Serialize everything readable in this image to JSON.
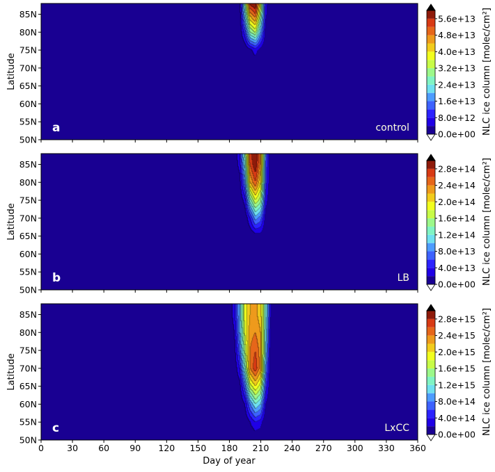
{
  "chart_data": {
    "type": "heatmap",
    "subtype": "filled-contour",
    "xlabel": "Day of year",
    "ylabel": "Latitude",
    "xlim": [
      0,
      360
    ],
    "ylim": [
      50,
      88
    ],
    "xticks": [
      0,
      30,
      60,
      90,
      120,
      150,
      180,
      210,
      240,
      270,
      300,
      330,
      360
    ],
    "xtick_labels": [
      "0",
      "30",
      "60",
      "90",
      "120",
      "150",
      "180",
      "210",
      "240",
      "270",
      "300",
      "330",
      "360"
    ],
    "yticks": [
      50,
      55,
      60,
      65,
      70,
      75,
      80,
      85
    ],
    "ytick_labels": [
      "50N",
      "55N",
      "60N",
      "65N",
      "70N",
      "75N",
      "80N",
      "85N"
    ],
    "colorbar_label": "NLC ice column  [molec/cm²]",
    "colormap": [
      "#190092",
      "#1f00e6",
      "#2b22ff",
      "#3d62ff",
      "#4d9cff",
      "#6fe0f0",
      "#80f4c4",
      "#9cf88a",
      "#c8fc48",
      "#f2ff1e",
      "#f2cc1c",
      "#ee9a1c",
      "#e6661a",
      "#d83a14",
      "#8e1a0a"
    ],
    "extend_max_color": "#000000",
    "extend_min_color": "#ffffff",
    "grid_days": [
      180,
      185,
      190,
      195,
      200,
      205,
      210,
      215,
      220,
      225,
      230
    ],
    "grid_lats": [
      50,
      55,
      60,
      65,
      70,
      75,
      80,
      85,
      88
    ],
    "panels": [
      {
        "letter": "a",
        "name": "control",
        "level_step": 4000000000000.0,
        "level_max": 60000000000000.0,
        "colorbar_ticks": [
          0,
          8000000000000.0,
          16000000000000.0,
          24000000000000.0,
          32000000000000.0,
          40000000000000.0,
          48000000000000.0,
          56000000000000.0
        ],
        "colorbar_tick_labels": [
          "0.0e+00",
          "8.0e+12",
          "1.6e+13",
          "2.4e+13",
          "3.2e+13",
          "4.0e+13",
          "4.8e+13",
          "5.6e+13"
        ],
        "values": [
          [
            0,
            0,
            0,
            0,
            0,
            0,
            0,
            0,
            0,
            0,
            0
          ],
          [
            0,
            0,
            0,
            0,
            0,
            0,
            0,
            0,
            0,
            0,
            0
          ],
          [
            0,
            0,
            0,
            0,
            0,
            0,
            0,
            0,
            0,
            0,
            0
          ],
          [
            0,
            0,
            0,
            0,
            0,
            0,
            0,
            0,
            0,
            0,
            0
          ],
          [
            0,
            0,
            0,
            0,
            0,
            0,
            0,
            0,
            0,
            0,
            0
          ],
          [
            0,
            0,
            0,
            0,
            3000000000000.0,
            6000000000000.0,
            2000000000000.0,
            0,
            0,
            0,
            0
          ],
          [
            0,
            0,
            0,
            10000000000000.0,
            28000000000000.0,
            33000000000000.0,
            18000000000000.0,
            2000000000000.0,
            0,
            0,
            0
          ],
          [
            0,
            0,
            1000000000000.0,
            22000000000000.0,
            46000000000000.0,
            52000000000000.0,
            30000000000000.0,
            5000000000000.0,
            0,
            0,
            0
          ],
          [
            0,
            0,
            2000000000000.0,
            28000000000000.0,
            58000000000000.0,
            61000000000000.0,
            35000000000000.0,
            6000000000000.0,
            0,
            0,
            0
          ]
        ]
      },
      {
        "letter": "b",
        "name": "LB",
        "level_step": 20000000000000.0,
        "level_max": 300000000000000.0,
        "colorbar_ticks": [
          0,
          40000000000000.0,
          80000000000000.0,
          120000000000000.0,
          160000000000000.0,
          200000000000000.0,
          240000000000000.0,
          280000000000000.0
        ],
        "colorbar_tick_labels": [
          "0.0e+00",
          "4.0e+13",
          "8.0e+13",
          "1.2e+14",
          "1.6e+14",
          "2.0e+14",
          "2.4e+14",
          "2.8e+14"
        ],
        "values": [
          [
            0,
            0,
            0,
            0,
            0,
            0,
            0,
            0,
            0,
            0,
            0
          ],
          [
            0,
            0,
            0,
            0,
            0,
            0,
            0,
            0,
            0,
            0,
            0
          ],
          [
            0,
            0,
            0,
            0,
            0,
            0,
            0,
            0,
            0,
            0,
            0
          ],
          [
            0,
            0,
            0,
            0,
            0,
            10000000000000.0,
            10000000000000.0,
            0,
            0,
            0,
            0
          ],
          [
            0,
            0,
            0,
            0,
            40000000000000.0,
            90000000000000.0,
            70000000000000.0,
            10000000000000.0,
            0,
            0,
            0
          ],
          [
            0,
            0,
            0,
            30000000000000.0,
            130000000000000.0,
            180000000000000.0,
            150000000000000.0,
            30000000000000.0,
            0,
            0,
            0
          ],
          [
            0,
            0,
            10000000000000.0,
            80000000000000.0,
            220000000000000.0,
            260000000000000.0,
            200000000000000.0,
            50000000000000.0,
            0,
            0,
            0
          ],
          [
            0,
            0,
            30000000000000.0,
            120000000000000.0,
            260000000000000.0,
            300000000000000.0,
            230000000000000.0,
            60000000000000.0,
            0,
            0,
            0
          ],
          [
            0,
            0,
            40000000000000.0,
            140000000000000.0,
            270000000000000.0,
            310000000000000.0,
            240000000000000.0,
            70000000000000.0,
            0,
            0,
            0
          ]
        ]
      },
      {
        "letter": "c",
        "name": "LxCC",
        "level_step": 200000000000000.0,
        "level_max": 3000000000000000.0,
        "colorbar_ticks": [
          0,
          400000000000000.0,
          800000000000000.0,
          1200000000000000.0,
          1600000000000000.0,
          2000000000000000.0,
          2400000000000000.0,
          2800000000000000.0
        ],
        "colorbar_tick_labels": [
          "0.0e+00",
          "4.0e+14",
          "8.0e+14",
          "1.2e+15",
          "1.6e+15",
          "2.0e+15",
          "2.4e+15",
          "2.8e+15"
        ],
        "values": [
          [
            0,
            0,
            0,
            0,
            0,
            0,
            0,
            0,
            0,
            0,
            0
          ],
          [
            0,
            0,
            0,
            0,
            200000000000000.0,
            400000000000000.0,
            300000000000000.0,
            0,
            0,
            0,
            0
          ],
          [
            0,
            0,
            0,
            200000000000000.0,
            800000000000000.0,
            1200000000000000.0,
            1000000000000000.0,
            200000000000000.0,
            0,
            0,
            0
          ],
          [
            0,
            0,
            100000000000000.0,
            700000000000000.0,
            1700000000000000.0,
            2000000000000000.0,
            1700000000000000.0,
            500000000000000.0,
            0,
            0,
            0
          ],
          [
            0,
            20000000000000.0,
            400000000000000.0,
            1300000000000000.0,
            2400000000000000.0,
            2750000000000000.0,
            2300000000000000.0,
            800000000000000.0,
            0,
            0,
            0
          ],
          [
            0,
            100000000000000.0,
            700000000000000.0,
            1600000000000000.0,
            2400000000000000.0,
            2600000000000000.0,
            2300000000000000.0,
            1000000000000000.0,
            50000000000000.0,
            0,
            0
          ],
          [
            0,
            200000000000000.0,
            900000000000000.0,
            1800000000000000.0,
            2300000000000000.0,
            2400000000000000.0,
            2200000000000000.0,
            1100000000000000.0,
            100000000000000.0,
            0,
            0
          ],
          [
            50000000000000.0,
            300000000000000.0,
            1000000000000000.0,
            1900000000000000.0,
            2200000000000000.0,
            2250000000000000.0,
            2100000000000000.0,
            1200000000000000.0,
            200000000000000.0,
            0,
            0
          ],
          [
            50000000000000.0,
            300000000000000.0,
            1000000000000000.0,
            1900000000000000.0,
            2200000000000000.0,
            2250000000000000.0,
            2100000000000000.0,
            1200000000000000.0,
            200000000000000.0,
            0,
            0
          ]
        ]
      }
    ]
  }
}
